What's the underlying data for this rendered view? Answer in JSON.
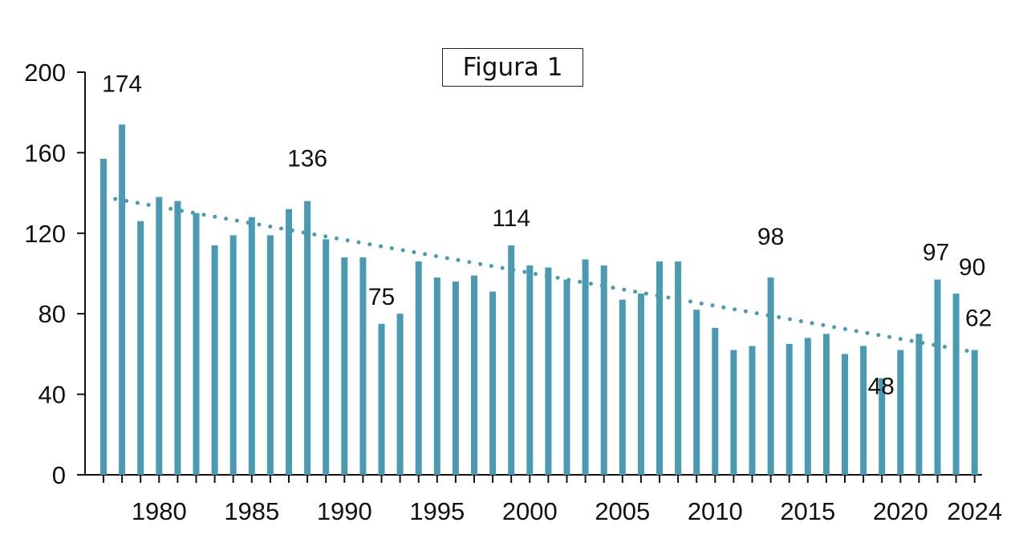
{
  "figure_label": "Figura 1",
  "chart_data": {
    "type": "bar",
    "title": "",
    "xlabel": "",
    "ylabel": "",
    "ylim": [
      0,
      200
    ],
    "yticks": [
      0,
      40,
      80,
      120,
      160,
      200
    ],
    "xticks": [
      "1980",
      "1985",
      "1990",
      "1995",
      "2000",
      "2005",
      "2010",
      "2015",
      "2020",
      "2024"
    ],
    "categories": [
      "1977",
      "1978",
      "1979",
      "1980",
      "1981",
      "1982",
      "1983",
      "1984",
      "1985",
      "1986",
      "1987",
      "1988",
      "1989",
      "1990",
      "1991",
      "1992",
      "1993",
      "1994",
      "1995",
      "1996",
      "1997",
      "1998",
      "1999",
      "2000",
      "2001",
      "2002",
      "2003",
      "2004",
      "2005",
      "2006",
      "2007",
      "2008",
      "2009",
      "2010",
      "2011",
      "2012",
      "2013",
      "2014",
      "2015",
      "2016",
      "2017",
      "2018",
      "2019",
      "2020",
      "2021",
      "2022",
      "2023",
      "2024"
    ],
    "values": [
      157,
      174,
      126,
      138,
      136,
      130,
      114,
      119,
      128,
      119,
      132,
      136,
      117,
      108,
      108,
      75,
      80,
      106,
      98,
      96,
      99,
      91,
      114,
      104,
      103,
      97,
      107,
      104,
      87,
      90,
      106,
      106,
      82,
      73,
      62,
      64,
      98,
      65,
      68,
      70,
      60,
      64,
      48,
      62,
      70,
      97,
      90,
      62
    ],
    "annotations": [
      {
        "category": "1978",
        "text": "174"
      },
      {
        "category": "1988",
        "text": "136"
      },
      {
        "category": "1992",
        "text": "75"
      },
      {
        "category": "1999",
        "text": "114"
      },
      {
        "category": "2013",
        "text": "98"
      },
      {
        "category": "2019",
        "text": "48"
      },
      {
        "category": "2022",
        "text": "97"
      },
      {
        "category": "2023",
        "text": "90"
      },
      {
        "category": "2024",
        "text": "62"
      }
    ],
    "trendline": {
      "style": "dotted",
      "start_value": 138,
      "end_value": 61
    },
    "colors": {
      "bar": "#4a9bb1",
      "trend": "#4a9bb1",
      "axis": "#111111"
    }
  }
}
